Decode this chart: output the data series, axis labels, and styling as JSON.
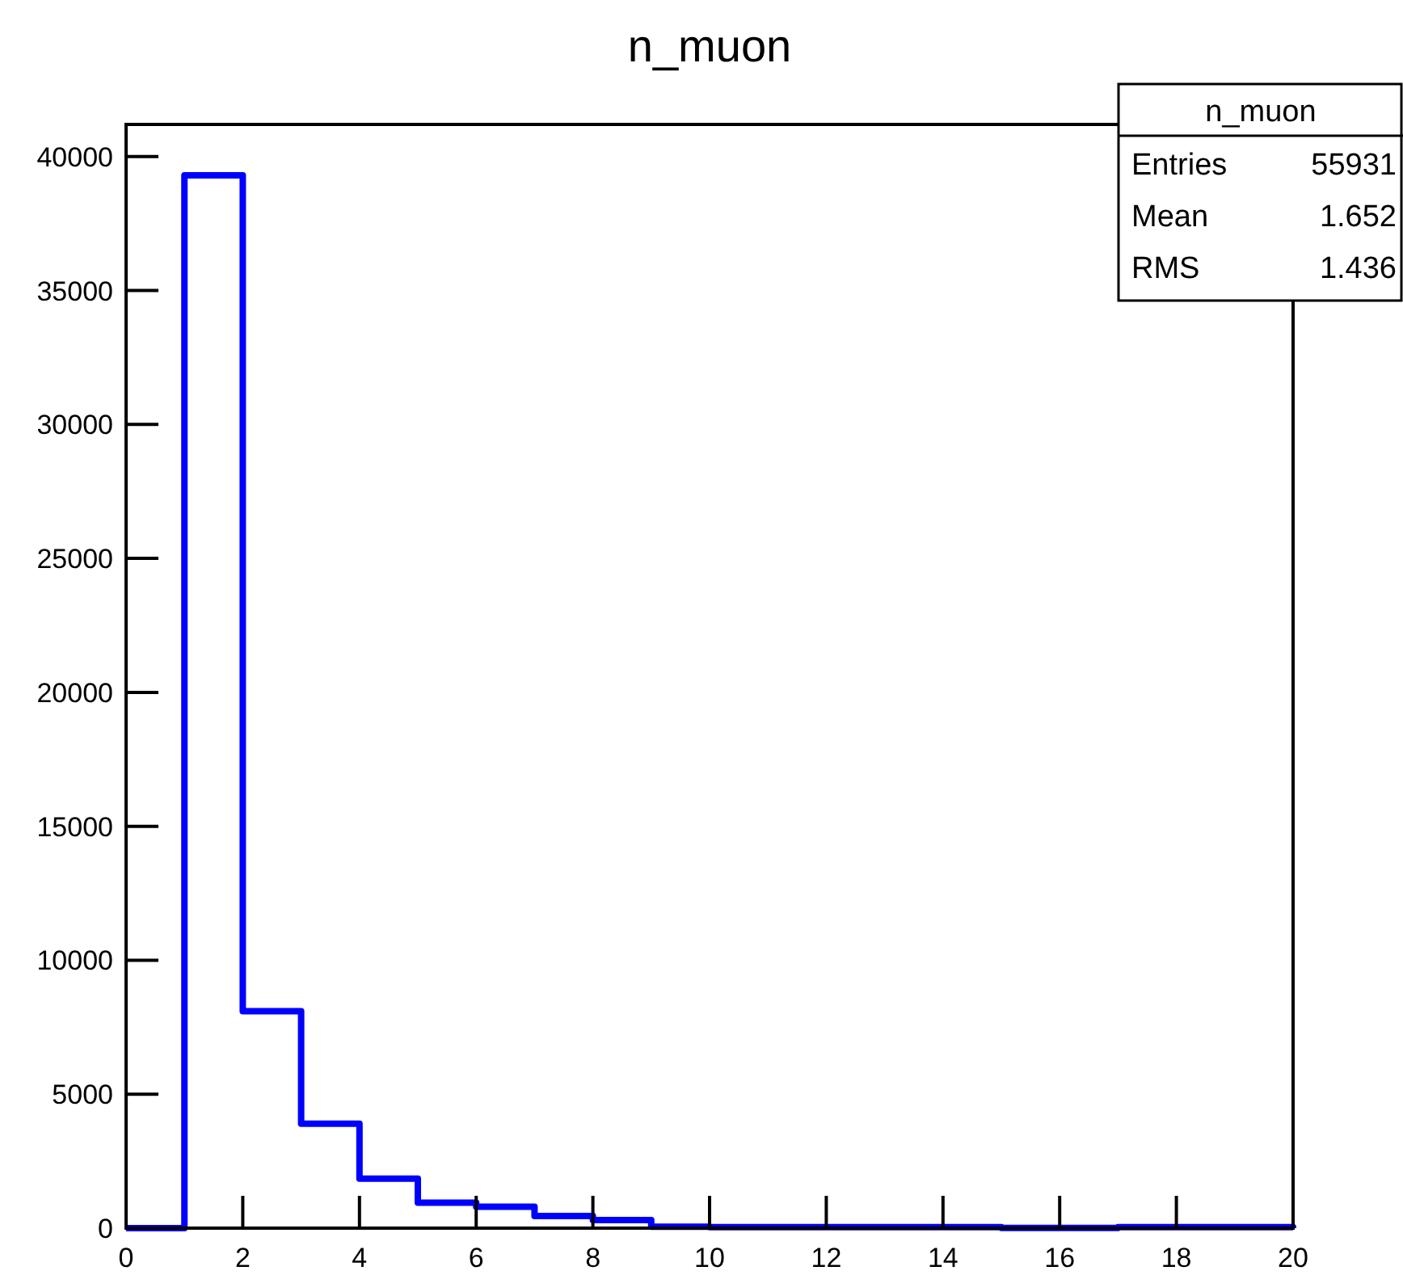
{
  "chart_data": {
    "type": "histogram",
    "title": "n_muon",
    "bins": [
      0,
      1,
      2,
      3,
      4,
      5,
      6,
      7,
      8,
      9,
      10,
      11,
      12,
      13,
      14,
      15,
      16,
      17,
      18,
      19,
      20
    ],
    "values": [
      0,
      39300,
      8100,
      3900,
      1850,
      950,
      800,
      450,
      300,
      50,
      40,
      40,
      40,
      40,
      40,
      10,
      10,
      40,
      40,
      40
    ],
    "color": "#0000ff",
    "xlim": [
      0,
      20
    ],
    "xticks": [
      0,
      2,
      4,
      6,
      8,
      10,
      12,
      14,
      16,
      18,
      20
    ],
    "ylim": [
      0,
      41200
    ],
    "yticks": [
      0,
      5000,
      10000,
      15000,
      20000,
      25000,
      30000,
      35000,
      40000
    ],
    "grid": false,
    "annotations": [
      "n_muon",
      "Entries",
      "55931",
      "Mean",
      "1.652",
      "RMS",
      "1.436"
    ]
  }
}
